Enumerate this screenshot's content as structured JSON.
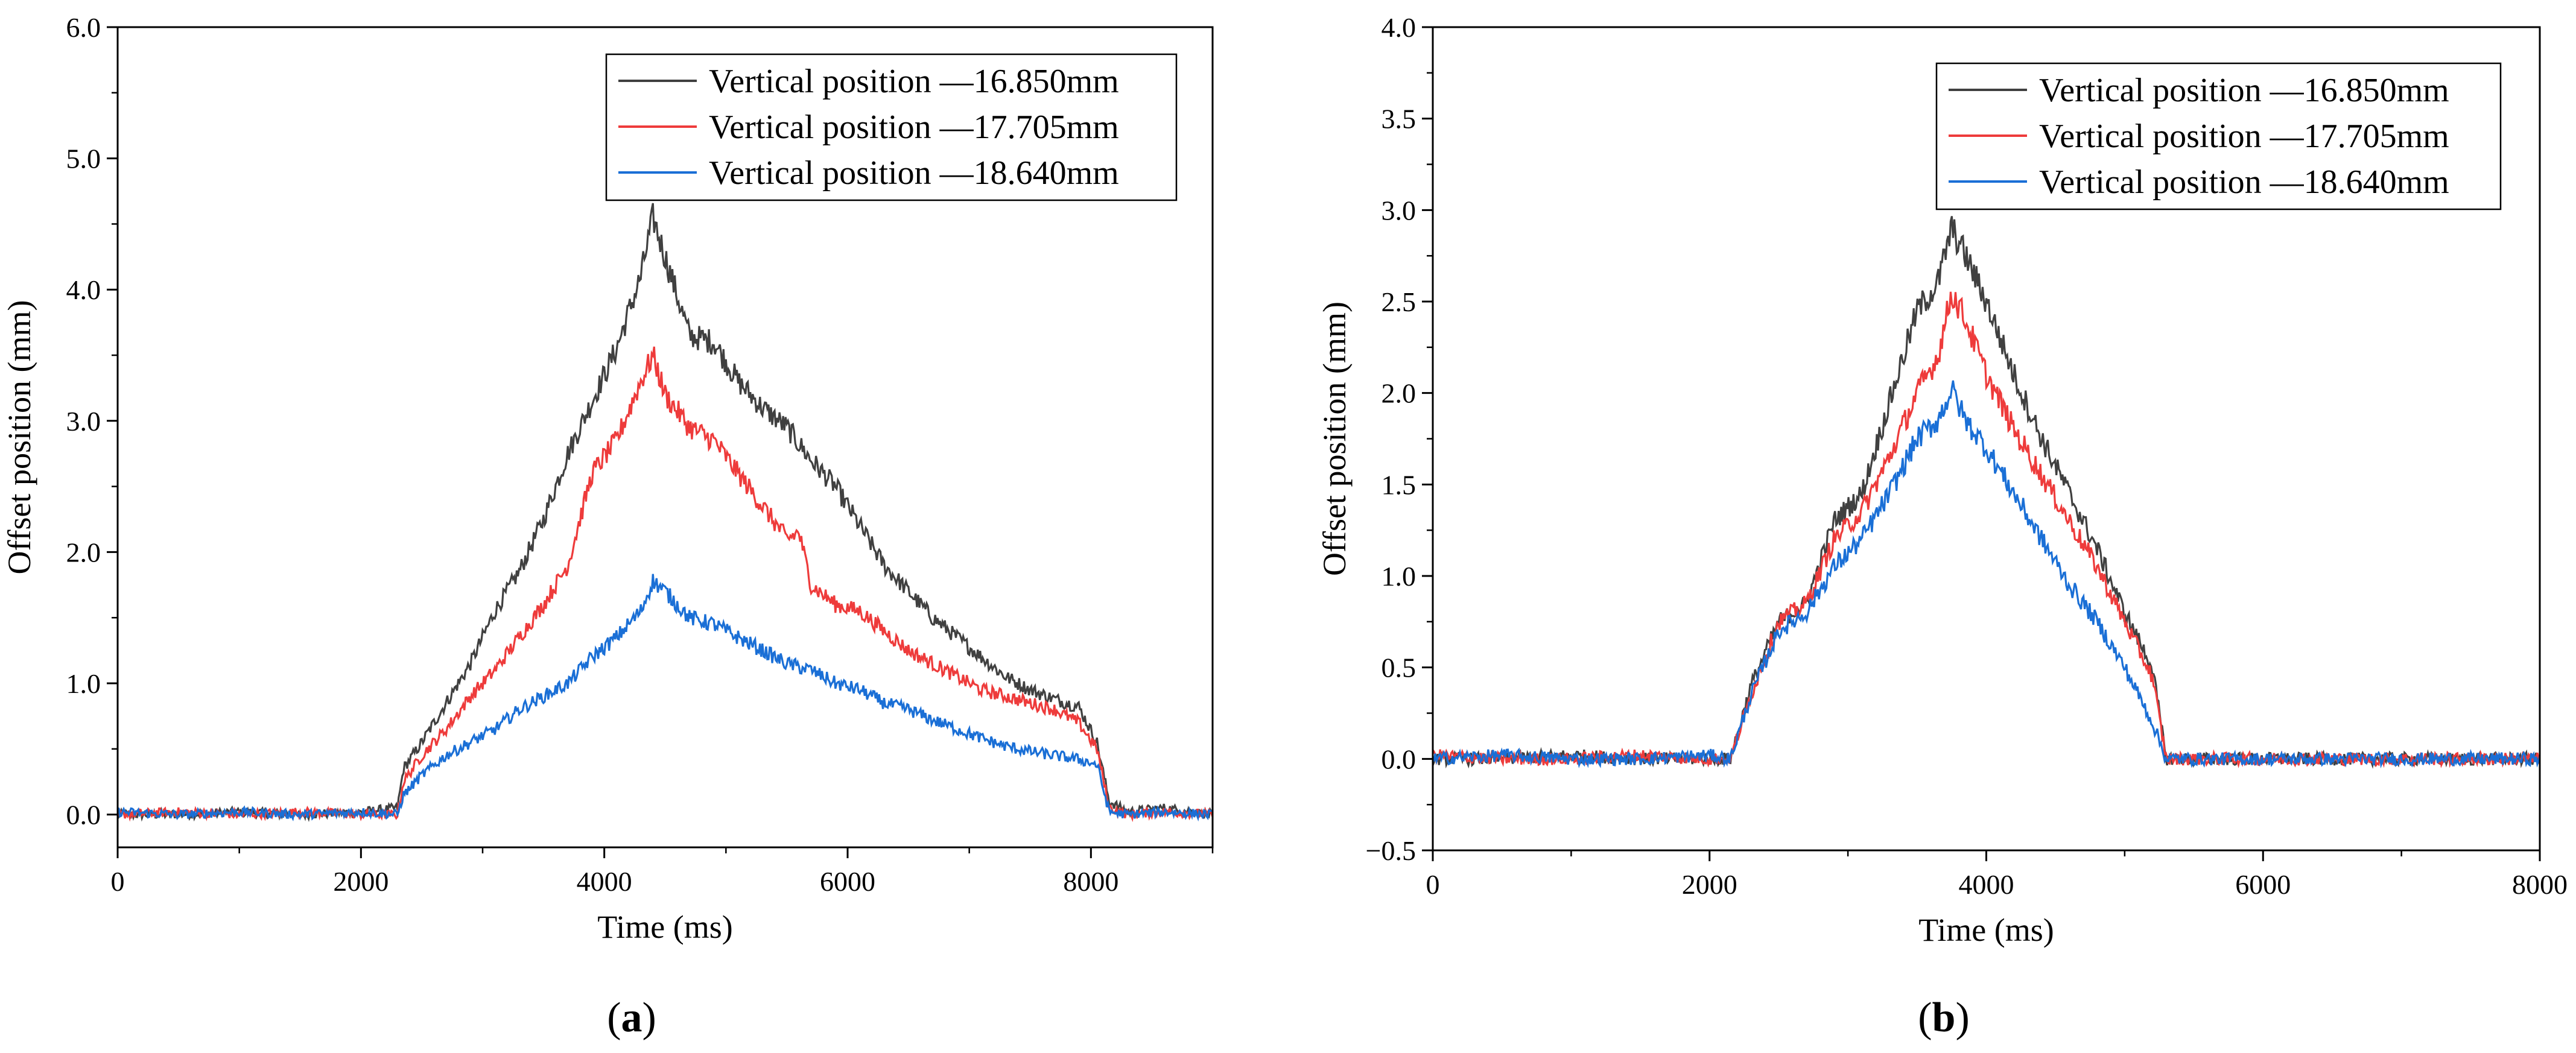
{
  "colors": {
    "series_1": "#404040",
    "series_2": "#ee3b3b",
    "series_3": "#1a6fd6"
  },
  "chart_data": [
    {
      "type": "line",
      "panel_label": "a",
      "xlabel": "Time (ms)",
      "ylabel": "Offset position (mm)",
      "xlim": [
        0,
        9000
      ],
      "ylim": [
        -0.25,
        6.0
      ],
      "x_ticks": [
        0,
        2000,
        4000,
        6000,
        8000
      ],
      "x_tick_labels": [
        "0",
        "2000",
        "4000",
        "6000",
        "8000"
      ],
      "y_ticks": [
        0,
        1,
        2,
        3,
        4,
        5,
        6
      ],
      "y_tick_labels": [
        "0.0",
        "1.0",
        "2.0",
        "3.0",
        "4.0",
        "5.0",
        "6.0"
      ],
      "grid": false,
      "legend_position": "top-right",
      "series": [
        {
          "name": "Vertical position —16.850mm",
          "color": "#404040",
          "x": [
            0,
            500,
            1000,
            1500,
            2000,
            2300,
            2350,
            2500,
            2700,
            2900,
            3100,
            3300,
            3500,
            3700,
            3900,
            4100,
            4300,
            4400,
            4500,
            4700,
            4900,
            5100,
            5300,
            5500,
            5700,
            5900,
            6100,
            6300,
            6500,
            6700,
            6900,
            7100,
            7300,
            7500,
            7700,
            7900,
            8050,
            8150,
            8300,
            8600,
            9000
          ],
          "y": [
            0.0,
            0.0,
            0.02,
            0.0,
            0.02,
            0.05,
            0.35,
            0.55,
            0.85,
            1.15,
            1.55,
            1.85,
            2.25,
            2.75,
            3.15,
            3.55,
            4.1,
            4.55,
            4.25,
            3.65,
            3.6,
            3.3,
            3.1,
            2.95,
            2.7,
            2.5,
            2.2,
            1.9,
            1.7,
            1.5,
            1.35,
            1.2,
            1.05,
            0.95,
            0.88,
            0.82,
            0.55,
            0.1,
            0.02,
            0.05,
            0.0
          ]
        },
        {
          "name": "Vertical position —17.705mm",
          "color": "#ee3b3b",
          "x": [
            0,
            500,
            1000,
            1500,
            2000,
            2300,
            2350,
            2500,
            2700,
            2900,
            3100,
            3300,
            3500,
            3700,
            3900,
            4100,
            4300,
            4400,
            4500,
            4700,
            4900,
            5100,
            5300,
            5500,
            5600,
            5700,
            5900,
            6100,
            6300,
            6500,
            6700,
            6900,
            7100,
            7300,
            7500,
            7700,
            7900,
            8050,
            8150,
            8300,
            8600,
            9000
          ],
          "y": [
            0.0,
            0.02,
            0.0,
            0.02,
            0.0,
            0.0,
            0.25,
            0.45,
            0.65,
            0.9,
            1.1,
            1.35,
            1.6,
            1.9,
            2.6,
            2.85,
            3.3,
            3.5,
            3.2,
            2.95,
            2.85,
            2.6,
            2.35,
            2.1,
            2.15,
            1.75,
            1.6,
            1.55,
            1.4,
            1.25,
            1.15,
            1.05,
            0.95,
            0.9,
            0.85,
            0.8,
            0.7,
            0.5,
            0.05,
            0.0,
            0.02,
            0.0
          ]
        },
        {
          "name": "Vertical position —18.640mm",
          "color": "#1a6fd6",
          "x": [
            0,
            500,
            1000,
            1500,
            2000,
            2300,
            2350,
            2500,
            2700,
            2900,
            3100,
            3300,
            3500,
            3700,
            3900,
            4100,
            4300,
            4400,
            4500,
            4700,
            4900,
            5100,
            5300,
            5500,
            5700,
            5900,
            6100,
            6300,
            6500,
            6700,
            6900,
            7100,
            7300,
            7500,
            7700,
            7900,
            8050,
            8150,
            8300,
            8600,
            9000
          ],
          "y": [
            0.02,
            0.0,
            0.02,
            0.0,
            0.02,
            0.0,
            0.15,
            0.3,
            0.45,
            0.55,
            0.65,
            0.8,
            0.9,
            1.0,
            1.2,
            1.35,
            1.55,
            1.78,
            1.7,
            1.5,
            1.45,
            1.35,
            1.25,
            1.15,
            1.1,
            1.0,
            0.95,
            0.85,
            0.8,
            0.72,
            0.65,
            0.58,
            0.52,
            0.48,
            0.45,
            0.42,
            0.38,
            0.02,
            0.0,
            0.02,
            0.0
          ]
        }
      ]
    },
    {
      "type": "line",
      "panel_label": "b",
      "xlabel": "Time (ms)",
      "ylabel": "Offset position (mm)",
      "xlim": [
        0,
        8000
      ],
      "ylim": [
        -0.5,
        4.0
      ],
      "x_ticks": [
        0,
        2000,
        4000,
        6000,
        8000
      ],
      "x_tick_labels": [
        "0",
        "2000",
        "4000",
        "6000",
        "8000"
      ],
      "y_ticks": [
        -0.5,
        0,
        0.5,
        1.0,
        1.5,
        2.0,
        2.5,
        3.0,
        3.5,
        4.0
      ],
      "y_tick_labels": [
        "−0.5",
        "0.0",
        "0.5",
        "1.0",
        "1.5",
        "2.0",
        "2.5",
        "3.0",
        "3.5",
        "4.0"
      ],
      "grid": false,
      "legend_position": "top-right",
      "series": [
        {
          "name": "Vertical position —16.850mm",
          "color": "#404040",
          "x": [
            0,
            500,
            1000,
            1500,
            2000,
            2150,
            2300,
            2500,
            2700,
            2900,
            3100,
            3300,
            3500,
            3650,
            3750,
            3850,
            4000,
            4200,
            4400,
            4600,
            4800,
            5000,
            5200,
            5300,
            5500,
            6000,
            6500,
            7000,
            7500,
            8000
          ],
          "y": [
            0.0,
            0.0,
            0.02,
            0.0,
            0.0,
            0.0,
            0.4,
            0.75,
            0.85,
            1.3,
            1.45,
            1.95,
            2.45,
            2.6,
            2.9,
            2.75,
            2.5,
            2.1,
            1.75,
            1.45,
            1.15,
            0.8,
            0.5,
            0.0,
            0.0,
            0.0,
            0.0,
            0.0,
            0.0,
            0.0
          ]
        },
        {
          "name": "Vertical position —17.705mm",
          "color": "#ee3b3b",
          "x": [
            0,
            500,
            1000,
            1500,
            2000,
            2150,
            2300,
            2500,
            2700,
            2900,
            3100,
            3300,
            3500,
            3650,
            3750,
            3850,
            4000,
            4200,
            4400,
            4600,
            4800,
            5000,
            5200,
            5300,
            5500,
            6000,
            6500,
            7000,
            7500,
            8000
          ],
          "y": [
            0.02,
            0.0,
            0.0,
            0.02,
            0.0,
            0.0,
            0.35,
            0.75,
            0.85,
            1.2,
            1.35,
            1.65,
            2.0,
            2.2,
            2.55,
            2.4,
            2.1,
            1.8,
            1.55,
            1.3,
            1.05,
            0.75,
            0.45,
            0.0,
            0.0,
            0.0,
            0.0,
            0.0,
            0.0,
            0.0
          ]
        },
        {
          "name": "Vertical position —18.640mm",
          "color": "#1a6fd6",
          "x": [
            0,
            500,
            1000,
            1500,
            2000,
            2150,
            2300,
            2500,
            2700,
            2900,
            3100,
            3300,
            3500,
            3650,
            3750,
            3850,
            4000,
            4200,
            4400,
            4600,
            4800,
            5000,
            5200,
            5300,
            5500,
            6000,
            6500,
            7000,
            7500,
            8000
          ],
          "y": [
            0.0,
            0.02,
            0.0,
            0.0,
            0.02,
            0.0,
            0.35,
            0.7,
            0.8,
            1.05,
            1.2,
            1.45,
            1.75,
            1.85,
            2.02,
            1.85,
            1.7,
            1.45,
            1.2,
            0.95,
            0.75,
            0.5,
            0.2,
            0.0,
            0.0,
            0.0,
            0.0,
            0.0,
            0.0,
            0.0
          ]
        }
      ]
    }
  ]
}
